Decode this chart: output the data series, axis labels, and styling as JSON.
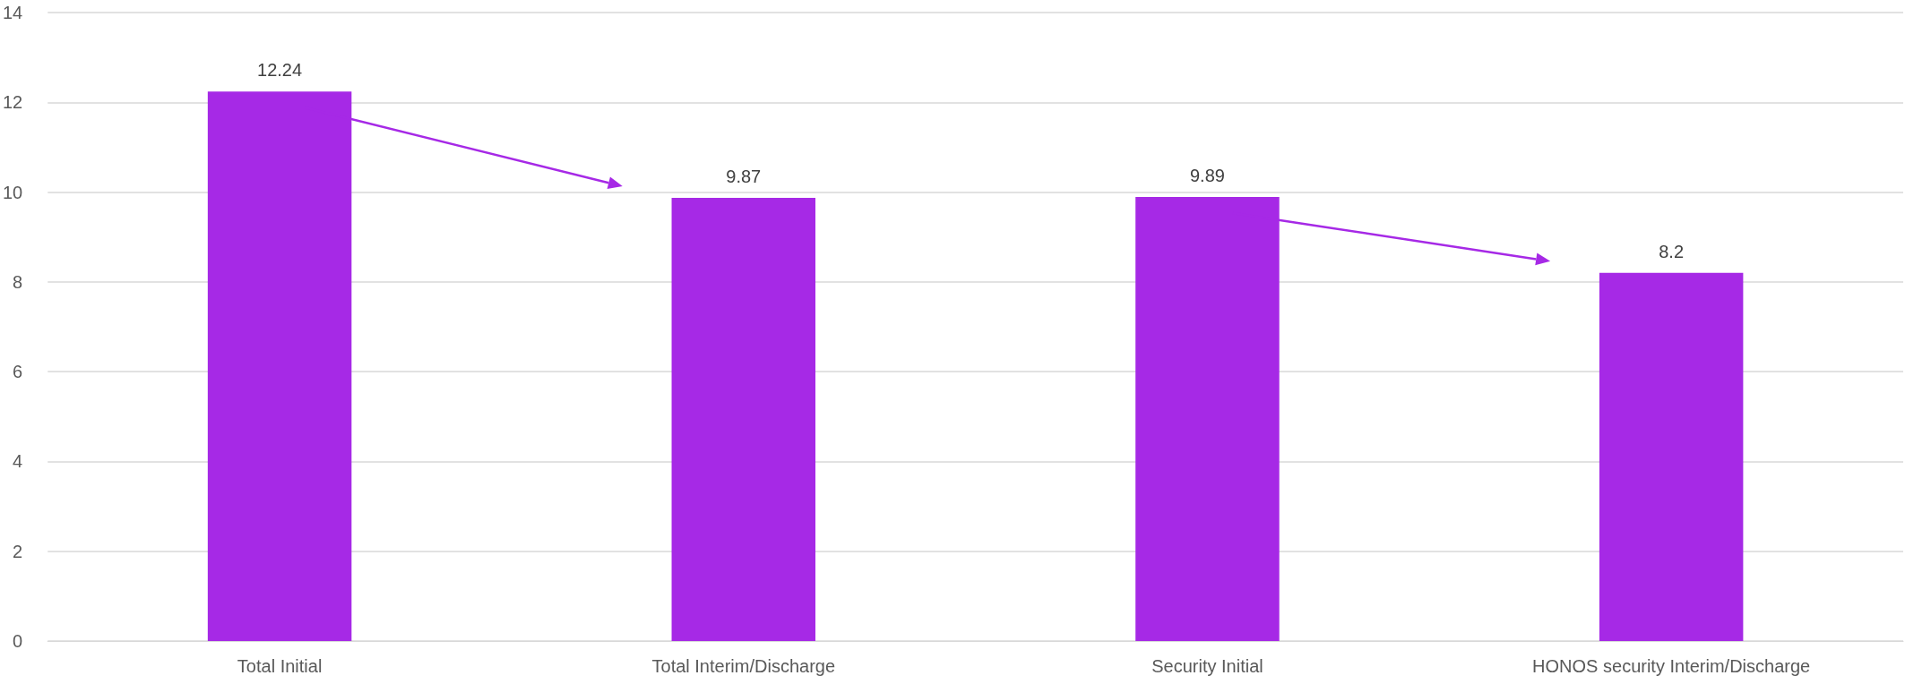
{
  "chart_data": {
    "type": "bar",
    "categories": [
      "Total Initial",
      "Total Interim/Discharge",
      "Security Initial",
      "HONOS security Interim/Discharge"
    ],
    "values": [
      12.24,
      9.87,
      9.89,
      8.2
    ],
    "color": "#a629e6",
    "ylim": [
      0,
      14
    ],
    "yticks": [
      0,
      2,
      4,
      6,
      8,
      10,
      12,
      14
    ],
    "grid": "y",
    "data_labels": true
  }
}
